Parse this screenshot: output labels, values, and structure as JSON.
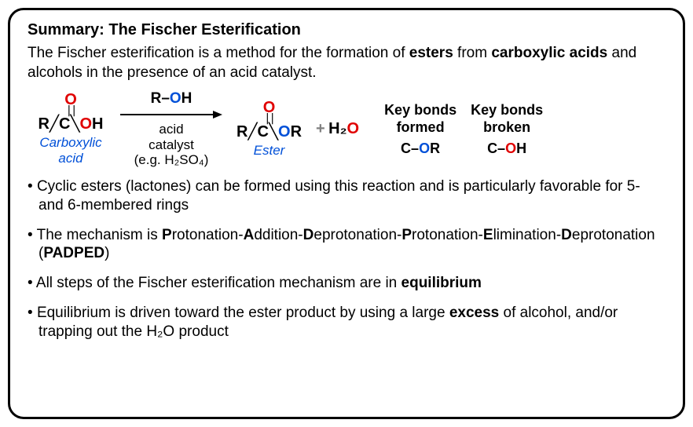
{
  "title": "Summary: The Fischer Esterification",
  "intro_html": "The Fischer esterification is a method for the formation of <b>esters</b> from <b>carboxylic acids</b> and alcohols in the presence of an acid catalyst.",
  "reaction": {
    "reactant": {
      "top_O": "O",
      "body_prefix": "R",
      "body_C": "C",
      "body_OH_O": "O",
      "body_OH_H": "H",
      "label": "Carboxylic acid",
      "label_color": "#0050d8"
    },
    "arrow": {
      "reagent_prefix": "R–",
      "reagent_O": "O",
      "reagent_H": "H",
      "sub1": "acid",
      "sub2": "catalyst",
      "sub3": "(e.g. H₂SO₄)"
    },
    "product": {
      "top_O": "O",
      "body_prefix": "R",
      "body_C": "C",
      "body_OR_O": "O",
      "body_OR_R": "R",
      "label": "Ester",
      "label_color": "#0050d8"
    },
    "plus": "+",
    "byproduct_H2": "H₂",
    "byproduct_O": "O",
    "key_formed": {
      "title1": "Key bonds",
      "title2": "formed",
      "bond_C": "C–",
      "bond_O": "O",
      "bond_R": "R"
    },
    "key_broken": {
      "title1": "Key bonds",
      "title2": "broken",
      "bond_C": "C–",
      "bond_O": "O",
      "bond_H": "H"
    }
  },
  "bullets": [
    "Cyclic esters (lactones) can be formed using this reaction and is particularly favorable for 5- and 6-membered rings",
    "The mechanism is <b>P</b>rotonation-<b>A</b>ddition-<b>D</b>eprotonation-<b>P</b>rotonation-<b>E</b>limination-<b>D</b>eprotonation (<b>PADPED</b>)",
    "All steps of the Fischer esterification mechanism are in <b>equilibrium</b>",
    "Equilibrium is driven toward the ester product by using a large <b>excess</b> of alcohol, and/or trapping out the H₂O product"
  ],
  "colors": {
    "red": "#e00000",
    "blue": "#0050d8",
    "grey": "#808080",
    "black": "#000000"
  }
}
